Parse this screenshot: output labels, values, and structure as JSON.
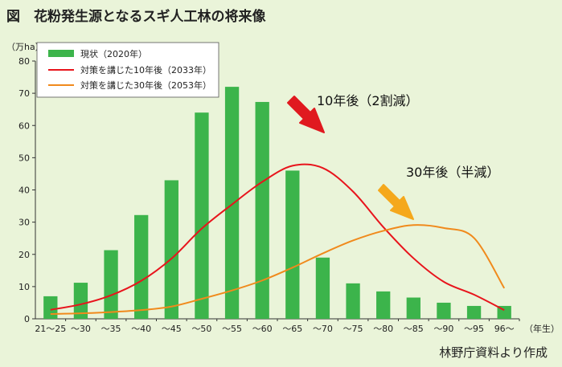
{
  "page": {
    "title": "図　花粉発生源となるスギ人工林の将来像",
    "source": "林野庁資料より作成"
  },
  "colors": {
    "background": "#eaf4d9",
    "bar": "#3cb44b",
    "line_10y": "#e8141c",
    "line_30y": "#f08a1c",
    "arrow_10y": "#e0191f",
    "arrow_30y": "#f5a81c"
  },
  "chart_data": {
    "type": "bar",
    "title": "",
    "ylabel": "（万ha）",
    "xlabel": "（年生）",
    "ylim": [
      0,
      80
    ],
    "yticks": [
      0,
      10,
      20,
      30,
      40,
      50,
      60,
      70,
      80
    ],
    "grid": false,
    "legend_position": "top-left",
    "categories": [
      "21～25",
      "～30",
      "～35",
      "～40",
      "～45",
      "～50",
      "～55",
      "～60",
      "～65",
      "～70",
      "～75",
      "～80",
      "～85",
      "～90",
      "～95",
      "96～"
    ],
    "series": [
      {
        "name": "現状（2020年）",
        "type": "bar",
        "values": [
          7,
          11.2,
          21.3,
          32.2,
          43,
          64,
          72,
          67.3,
          46,
          19,
          11,
          8.5,
          6.6,
          5,
          4,
          4
        ]
      },
      {
        "name": "対策を講じた10年後（2033年）",
        "type": "line",
        "values": [
          2.8,
          4.5,
          7.3,
          11.8,
          18.7,
          28,
          35.5,
          42.5,
          47.5,
          46.8,
          39.5,
          28.5,
          18.8,
          11.5,
          7.5,
          2.7
        ]
      },
      {
        "name": "対策を講じた30年後（2053年）",
        "type": "line",
        "values": [
          1.5,
          1.7,
          2.1,
          2.7,
          3.8,
          6.2,
          8.8,
          11.9,
          15.9,
          20.3,
          24.3,
          27.3,
          29.1,
          28.2,
          25.1,
          9.5
        ]
      }
    ],
    "annotations": [
      {
        "text": "10年後（2割減）",
        "series": 1
      },
      {
        "text": "30年後（半減）",
        "series": 2
      }
    ]
  }
}
